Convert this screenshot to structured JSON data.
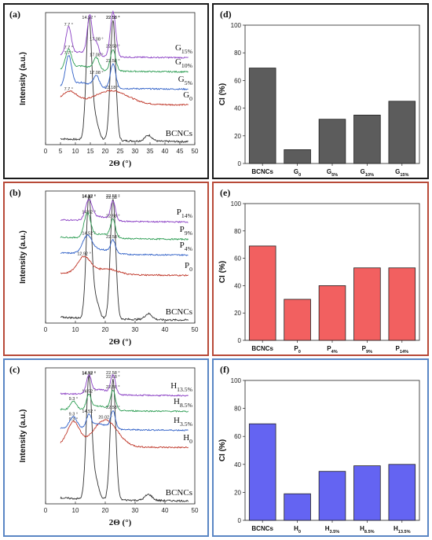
{
  "chart_data": [
    {
      "id": "a",
      "type": "line",
      "panel_label": "(a)",
      "xlabel": "2Θ (°)",
      "ylabel": "Intensity (a.u.)",
      "xlim": [
        0,
        50
      ],
      "xticks": [
        0,
        5,
        10,
        15,
        20,
        25,
        30,
        35,
        40,
        45,
        50
      ],
      "series": [
        {
          "name": "BCNCs",
          "color": "#333333",
          "peaks": [
            {
              "pos": 14.52,
              "label": "14.52 °"
            },
            {
              "pos": 22.58,
              "label": "22.58 °"
            }
          ]
        },
        {
          "name": "G",
          "sub": "0",
          "color": "#c0392b",
          "peaks": [
            {
              "pos": 7.7,
              "label": "7.7 °"
            },
            {
              "pos": 22.18,
              "label": "22.18 °"
            }
          ]
        },
        {
          "name": "G",
          "sub": "5%",
          "color": "#2e5fc7",
          "peaks": [
            {
              "pos": 7.7,
              "label": "7.7 °"
            },
            {
              "pos": 17.08,
              "label": "17.08 °"
            },
            {
              "pos": 22.58,
              "label": "22.58 °"
            }
          ]
        },
        {
          "name": "G",
          "sub": "10%",
          "color": "#2f9e55",
          "peaks": [
            {
              "pos": 7.7,
              "label": "7.7 °"
            },
            {
              "pos": 17.08,
              "label": "17.08 °"
            },
            {
              "pos": 22.58,
              "label": "22.58 °"
            }
          ]
        },
        {
          "name": "G",
          "sub": "15%",
          "color": "#8a3fc4",
          "peaks": [
            {
              "pos": 7.7,
              "label": "7.7 °"
            },
            {
              "pos": 17.08,
              "label": "17.08 °"
            },
            {
              "pos": 22.58,
              "label": "22.58 °"
            }
          ]
        }
      ]
    },
    {
      "id": "b",
      "type": "line",
      "panel_label": "(b)",
      "xlabel": "2Θ (°)",
      "ylabel": "Intensity (a.u.)",
      "xlim": [
        0,
        50
      ],
      "xticks": [
        0,
        10,
        20,
        30,
        40,
        50
      ],
      "series": [
        {
          "name": "BCNCs",
          "color": "#333333",
          "peaks": [
            {
              "pos": 14.52,
              "label": "14.52 °"
            },
            {
              "pos": 22.58,
              "label": "22.58 °"
            }
          ]
        },
        {
          "name": "P",
          "sub": "0",
          "color": "#c0392b",
          "peaks": [
            {
              "pos": 12.92,
              "label": "12.92 °"
            }
          ]
        },
        {
          "name": "P",
          "sub": "4%",
          "color": "#2e5fc7",
          "peaks": [
            {
              "pos": 14.52,
              "label": "14.52 °"
            },
            {
              "pos": 22.58,
              "label": "22.58 °"
            }
          ]
        },
        {
          "name": "P",
          "sub": "9%",
          "color": "#2f9e55",
          "peaks": [
            {
              "pos": 14.52,
              "label": "14.52 °"
            },
            {
              "pos": 22.58,
              "label": "22.58 °"
            }
          ]
        },
        {
          "name": "P",
          "sub": "14%",
          "color": "#8a3fc4",
          "peaks": [
            {
              "pos": 14.52,
              "label": "14.52 °"
            },
            {
              "pos": 22.58,
              "label": "22.58 °"
            }
          ]
        }
      ]
    },
    {
      "id": "c",
      "type": "line",
      "panel_label": "(c)",
      "xlabel": "2Θ (°)",
      "ylabel": "Intensity (a.u.)",
      "xlim": [
        0,
        50
      ],
      "xticks": [
        0,
        10,
        20,
        30,
        40,
        50
      ],
      "series": [
        {
          "name": "BCNCs",
          "color": "#333333",
          "peaks": [
            {
              "pos": 14.52,
              "label": "14.52 °"
            },
            {
              "pos": 22.58,
              "label": "22.58 °"
            }
          ]
        },
        {
          "name": "H",
          "sub": "0",
          "color": "#c0392b",
          "peaks": [
            {
              "pos": 9.3,
              "label": "9.3 °"
            },
            {
              "pos": 20.02,
              "label": "20.02 °"
            }
          ]
        },
        {
          "name": "H",
          "sub": "3.5%",
          "color": "#2e5fc7",
          "peaks": [
            {
              "pos": 9.3,
              "label": "9.3 °"
            },
            {
              "pos": 14.52,
              "label": "14.52 °"
            },
            {
              "pos": 22.58,
              "label": "22.58 °"
            }
          ]
        },
        {
          "name": "H",
          "sub": "8.5%",
          "color": "#2f9e55",
          "peaks": [
            {
              "pos": 9.3,
              "label": "9.3 °"
            },
            {
              "pos": 14.52,
              "label": "14.52 °"
            },
            {
              "pos": 22.58,
              "label": "22.58 °"
            }
          ]
        },
        {
          "name": "H",
          "sub": "13.5%",
          "color": "#8a3fc4",
          "peaks": [
            {
              "pos": 14.52,
              "label": "14.52 °"
            },
            {
              "pos": 22.58,
              "label": "22.58 °"
            }
          ]
        }
      ]
    },
    {
      "id": "d",
      "type": "bar",
      "panel_label": "(d)",
      "ylabel": "CI (%)",
      "ylim": [
        0,
        100
      ],
      "yticks": [
        0,
        20,
        40,
        60,
        80,
        100
      ],
      "bar_color": "#5c5c5c",
      "categories": [
        {
          "main": "BCNCs",
          "sub": ""
        },
        {
          "main": "G",
          "sub": "0"
        },
        {
          "main": "G",
          "sub": "5%"
        },
        {
          "main": "G",
          "sub": "10%"
        },
        {
          "main": "G",
          "sub": "15%"
        }
      ],
      "values": [
        69,
        10,
        32,
        35,
        45
      ]
    },
    {
      "id": "e",
      "type": "bar",
      "panel_label": "(e)",
      "ylabel": "CI (%)",
      "ylim": [
        0,
        100
      ],
      "yticks": [
        0,
        20,
        40,
        60,
        80,
        100
      ],
      "bar_color": "#f26060",
      "categories": [
        {
          "main": "BCNCs",
          "sub": ""
        },
        {
          "main": "P",
          "sub": "0"
        },
        {
          "main": "P",
          "sub": "4%"
        },
        {
          "main": "P",
          "sub": "9%"
        },
        {
          "main": "P",
          "sub": "14%"
        }
      ],
      "values": [
        69,
        30,
        40,
        53,
        53
      ]
    },
    {
      "id": "f",
      "type": "bar",
      "panel_label": "(f)",
      "ylabel": "CI (%)",
      "ylim": [
        0,
        100
      ],
      "yticks": [
        0,
        20,
        40,
        60,
        80,
        100
      ],
      "bar_color": "#6464f2",
      "categories": [
        {
          "main": "BCNCs",
          "sub": ""
        },
        {
          "main": "H",
          "sub": "0"
        },
        {
          "main": "H",
          "sub": "3.5%"
        },
        {
          "main": "H",
          "sub": "8.5%"
        },
        {
          "main": "H",
          "sub": "13.5%"
        }
      ],
      "values": [
        69,
        19,
        35,
        39,
        40
      ]
    }
  ]
}
